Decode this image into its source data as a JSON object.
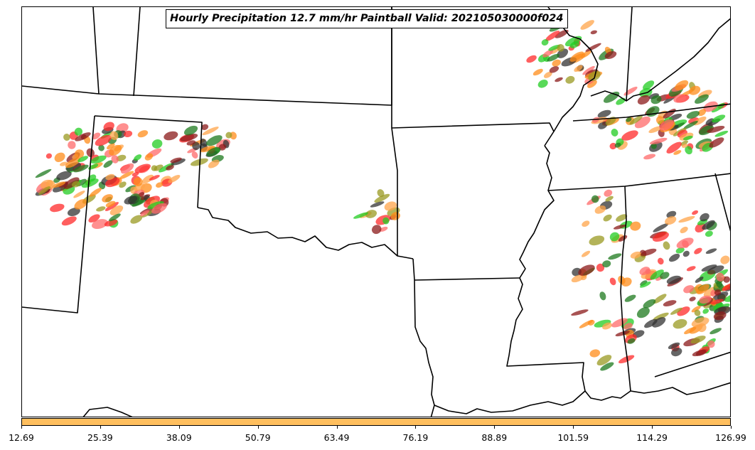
{
  "title": "Hourly Precipitation 12.7 mm/hr Paintball Valid: 202105030000f024",
  "colors": {
    "paintball_members": [
      "#ff2a2a",
      "#ff8c1a",
      "#8b1a1a",
      "#22cc22",
      "#1e7a1e",
      "#9a9a22",
      "#333333",
      "#ff6a6a",
      "#ffa44a"
    ],
    "colorbar_fill": "#ffbf5e",
    "boundary": "#000000"
  },
  "colorbar": {
    "ticks": [
      "12.69",
      "25.39",
      "38.09",
      "50.79",
      "63.49",
      "76.19",
      "88.89",
      "101.59",
      "114.29",
      "126.99"
    ]
  },
  "map": {
    "region": "Southern Plains to Southeast United States",
    "features": [
      "state boundaries",
      "coastline",
      "precipitation paintball ensemble member contours"
    ]
  }
}
